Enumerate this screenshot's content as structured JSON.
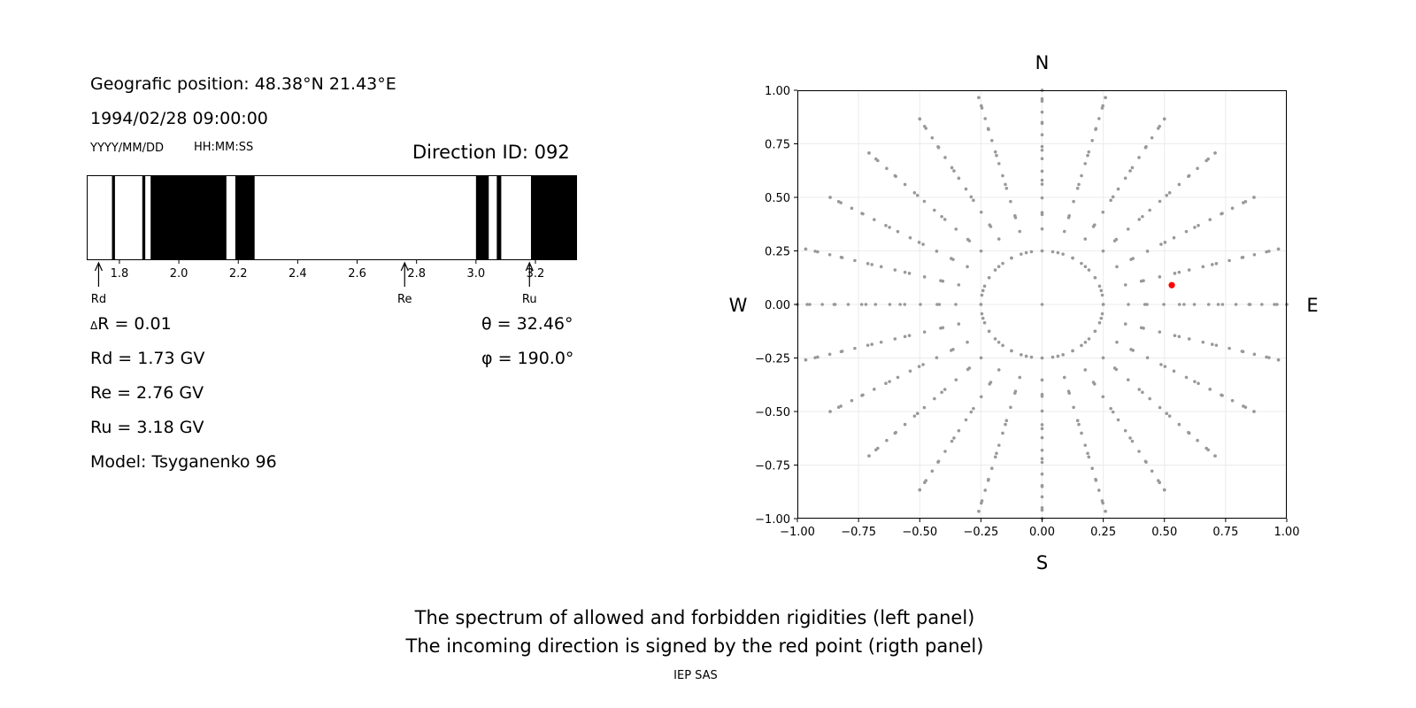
{
  "info": {
    "position": "Geografic position: 48.38°N 21.43°E",
    "datetime": "1994/02/28 09:00:00",
    "date_format": "YYYY/MM/DD",
    "time_format": "HH:MM:SS",
    "direction_id": "Direction ID: 092",
    "delta_r": "R = 0.01",
    "delta_symbol": "Δ",
    "rd": "Rd = 1.73 GV",
    "re": "Re = 2.76 GV",
    "ru": "Ru = 3.18 GV",
    "model": "Model: Tsyganenko 96",
    "theta": "θ = 32.46°",
    "phi": "φ = 190.0°"
  },
  "chart_data": [
    {
      "type": "bar",
      "name": "rigidity-spectrum",
      "xlim": [
        1.69,
        3.34
      ],
      "xticks": [
        1.8,
        2.0,
        2.2,
        2.4,
        2.6,
        2.8,
        3.0,
        3.2
      ],
      "xtick_labels": [
        "1.8",
        "2.0",
        "2.2",
        "2.4",
        "2.6",
        "2.8",
        "3.0",
        "3.2"
      ],
      "forbidden_intervals": [
        [
          1.775,
          1.785
        ],
        [
          1.877,
          1.887
        ],
        [
          1.905,
          2.16
        ],
        [
          2.19,
          2.255
        ],
        [
          3.0,
          3.043
        ],
        [
          3.07,
          3.085
        ],
        [
          3.185,
          3.34
        ]
      ],
      "markers": [
        {
          "label": "Rd",
          "value": 1.73
        },
        {
          "label": "Re",
          "value": 2.76
        },
        {
          "label": "Ru",
          "value": 3.18
        }
      ],
      "colors": {
        "forbidden": "#000000",
        "allowed": "#ffffff"
      }
    },
    {
      "type": "scatter",
      "name": "direction-map",
      "xlim": [
        -1.0,
        1.0
      ],
      "ylim": [
        -1.0,
        1.0
      ],
      "ticks": [
        -1.0,
        -0.75,
        -0.5,
        -0.25,
        0.0,
        0.25,
        0.5,
        0.75,
        1.0
      ],
      "tick_labels": [
        "−1.00",
        "−0.75",
        "−0.50",
        "−0.25",
        "0.00",
        "0.25",
        "0.50",
        "0.75",
        "1.00"
      ],
      "grid": true,
      "compass": {
        "north": "N",
        "south": "S",
        "west": "W",
        "east": "E"
      },
      "grid_points": {
        "rings": [
          0.25,
          0.42,
          0.58,
          0.72,
          0.85,
          0.96,
          1.0
        ],
        "ring_point_counts": [
          36,
          24,
          24,
          24,
          24,
          24,
          24
        ],
        "spokes": 24,
        "spoke_radius_range": [
          0.25,
          1.0
        ],
        "color": "#999999"
      },
      "highlight": {
        "x": 0.53,
        "y": 0.09,
        "color": "#ff0000"
      }
    }
  ],
  "caption": {
    "line1": "The spectrum of allowed and forbidden rigidities (left panel)",
    "line2": "The incoming direction is signed by the red point (rigth panel)",
    "credit": "IEP SAS"
  }
}
